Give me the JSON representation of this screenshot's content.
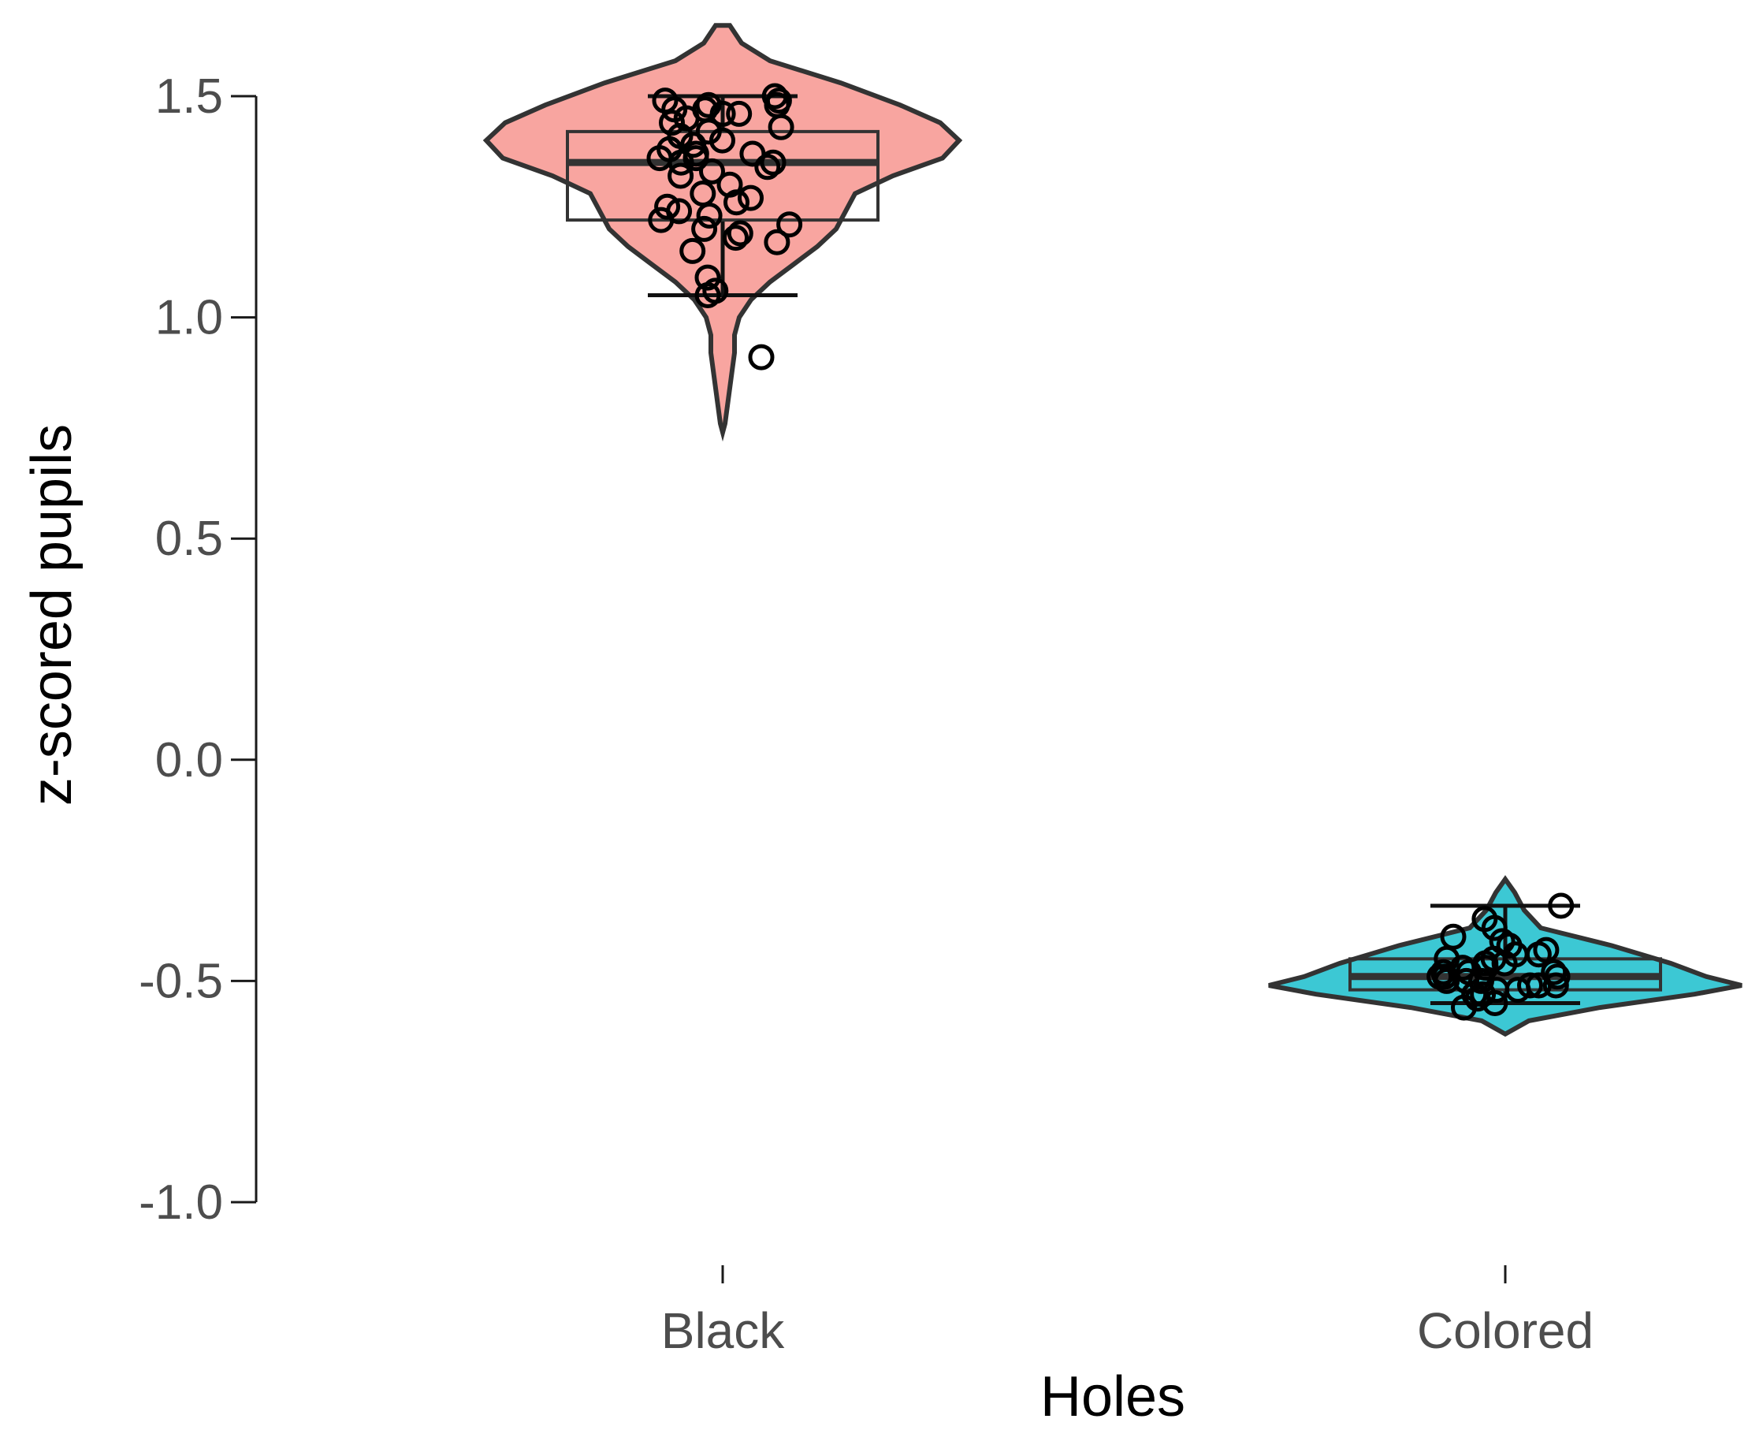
{
  "chart_data": {
    "type": "violin",
    "xlabel": "Holes",
    "ylabel": "z-scored pupils",
    "ylim": [
      -1.0,
      1.5
    ],
    "yticks": [
      1.5,
      1.0,
      0.5,
      0.0,
      -0.5,
      -1.0
    ],
    "ytick_labels": [
      "1.5",
      "1.0",
      "0.5",
      "0.0",
      "-0.5",
      "-1.0"
    ],
    "grid": false,
    "legend": "none",
    "categories": [
      "Black",
      "Colored"
    ],
    "groups": [
      {
        "category": "Black",
        "color": "#F8A5A0",
        "box": {
          "q1": 1.22,
          "median": 1.35,
          "q3": 1.42
        },
        "whisker": {
          "low": 1.05,
          "high": 1.5
        },
        "density": [
          [
            1.66,
            0.03
          ],
          [
            1.62,
            0.08
          ],
          [
            1.58,
            0.2
          ],
          [
            1.53,
            0.5
          ],
          [
            1.48,
            0.75
          ],
          [
            1.44,
            0.92
          ],
          [
            1.4,
            1.0
          ],
          [
            1.36,
            0.93
          ],
          [
            1.32,
            0.72
          ],
          [
            1.28,
            0.56
          ],
          [
            1.24,
            0.52
          ],
          [
            1.2,
            0.48
          ],
          [
            1.16,
            0.4
          ],
          [
            1.12,
            0.3
          ],
          [
            1.08,
            0.2
          ],
          [
            1.04,
            0.12
          ],
          [
            1.0,
            0.07
          ],
          [
            0.96,
            0.05
          ],
          [
            0.92,
            0.05
          ],
          [
            0.88,
            0.04
          ],
          [
            0.84,
            0.03
          ],
          [
            0.8,
            0.02
          ],
          [
            0.76,
            0.01
          ],
          [
            0.74,
            0.0
          ]
        ],
        "points": [
          1.5,
          1.49,
          1.49,
          1.48,
          1.48,
          1.47,
          1.47,
          1.46,
          1.46,
          1.45,
          1.44,
          1.43,
          1.42,
          1.41,
          1.4,
          1.39,
          1.38,
          1.37,
          1.37,
          1.36,
          1.36,
          1.35,
          1.35,
          1.34,
          1.33,
          1.32,
          1.3,
          1.28,
          1.27,
          1.26,
          1.25,
          1.24,
          1.23,
          1.22,
          1.21,
          1.2,
          1.19,
          1.18,
          1.17,
          1.15,
          1.09,
          1.06,
          1.05,
          0.91
        ]
      },
      {
        "category": "Colored",
        "color": "#3CC8D4",
        "box": {
          "q1": -0.52,
          "median": -0.49,
          "q3": -0.45
        },
        "whisker": {
          "low": -0.55,
          "high": -0.33
        },
        "density": [
          [
            -0.27,
            0.0
          ],
          [
            -0.3,
            0.04
          ],
          [
            -0.34,
            0.08
          ],
          [
            -0.38,
            0.15
          ],
          [
            -0.42,
            0.45
          ],
          [
            -0.46,
            0.7
          ],
          [
            -0.49,
            0.85
          ],
          [
            -0.51,
            1.0
          ],
          [
            -0.53,
            0.8
          ],
          [
            -0.56,
            0.4
          ],
          [
            -0.59,
            0.1
          ],
          [
            -0.62,
            0.0
          ]
        ],
        "points": [
          -0.33,
          -0.36,
          -0.38,
          -0.4,
          -0.41,
          -0.42,
          -0.43,
          -0.44,
          -0.44,
          -0.45,
          -0.45,
          -0.46,
          -0.46,
          -0.47,
          -0.47,
          -0.48,
          -0.48,
          -0.48,
          -0.49,
          -0.49,
          -0.49,
          -0.5,
          -0.5,
          -0.5,
          -0.51,
          -0.51,
          -0.51,
          -0.52,
          -0.52,
          -0.53,
          -0.53,
          -0.54,
          -0.55,
          -0.56
        ]
      }
    ]
  }
}
